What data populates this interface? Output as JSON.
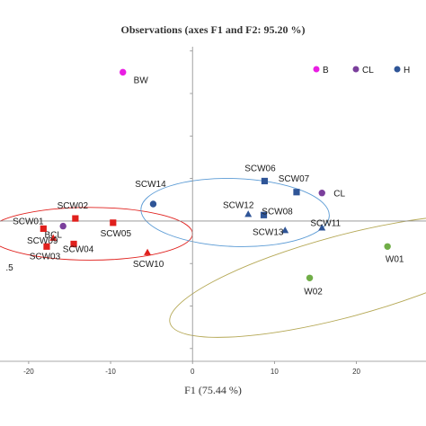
{
  "chart_data": {
    "type": "scatter",
    "title": "Observations (axes F1 and F2: 95.20 %)",
    "xlabel": "F1 (75.44 %)",
    "ylabel": "",
    "xlim": [
      -23.5,
      28.5
    ],
    "ylim": [
      -16.5,
      20.5
    ],
    "x_ticks": [
      -20,
      -10,
      0,
      10,
      20
    ],
    "grid": false,
    "legend_position": "top-right",
    "colors": {
      "B": "#e91ee3",
      "CL": "#7b3f9c",
      "H": "#2f5597",
      "SCW_red": "#e0201d",
      "SCW_blue": "#2f5597",
      "W": "#70ad47",
      "ellipse_red": "#e0201d",
      "ellipse_blue": "#5b9bd5",
      "ellipse_olive": "#b5a855"
    },
    "legend": [
      "B",
      "CL",
      "H"
    ],
    "series": [
      {
        "name": "B",
        "marker": "circle",
        "points": [
          {
            "label": "BW",
            "x": -8.5,
            "y": 17.5
          }
        ]
      },
      {
        "name": "CL",
        "marker": "circle",
        "points": [
          {
            "label": "BCL",
            "x": -15.8,
            "y": -0.6
          },
          {
            "label": "CL",
            "x": 15.8,
            "y": 3.3
          }
        ]
      },
      {
        "name": "H",
        "marker": "circle",
        "points": [
          {
            "label": "SCW14",
            "x": -4.8,
            "y": 2.0
          }
        ]
      },
      {
        "name": "",
        "marker": "square",
        "color": "SCW_red",
        "points": [
          {
            "label": "SCW02",
            "x": -14.3,
            "y": 0.3
          },
          {
            "label": "SCW01",
            "x": -18.2,
            "y": -0.9
          },
          {
            "label": "SCW05",
            "x": -9.7,
            "y": -0.2
          },
          {
            "label": "SCW04",
            "x": -14.5,
            "y": -2.7
          },
          {
            "label": "SCW03",
            "x": -17.8,
            "y": -3.0
          }
        ]
      },
      {
        "name": "",
        "marker": "triangle",
        "color": "SCW_red",
        "points": [
          {
            "label": "SCW09",
            "x": -17.0,
            "y": -2.0
          },
          {
            "label": "SCW10",
            "x": -5.5,
            "y": -3.7
          }
        ]
      },
      {
        "name": "",
        "marker": "square",
        "color": "SCW_blue",
        "points": [
          {
            "label": "SCW06",
            "x": 8.8,
            "y": 4.7
          },
          {
            "label": "SCW07",
            "x": 12.7,
            "y": 3.4
          },
          {
            "label": "SCW08",
            "x": 8.7,
            "y": 0.7
          }
        ]
      },
      {
        "name": "",
        "marker": "triangle",
        "color": "SCW_blue",
        "points": [
          {
            "label": "SCW12",
            "x": 6.8,
            "y": 0.8
          },
          {
            "label": "SCW13",
            "x": 11.3,
            "y": -1.1
          },
          {
            "label": "SCW11",
            "x": 15.8,
            "y": -0.8
          }
        ]
      },
      {
        "name": "",
        "marker": "circle",
        "color": "W",
        "points": [
          {
            "label": "W01",
            "x": 23.8,
            "y": -3.0
          },
          {
            "label": "W02",
            "x": 14.3,
            "y": -6.7
          }
        ]
      }
    ],
    "annotations": [
      {
        "text": ".5",
        "x": -22.8,
        "y": -5.8
      }
    ],
    "ellipses": [
      {
        "color": "ellipse_red",
        "cx": -12.5,
        "cy": -1.5,
        "rx": 12.5,
        "ry": 3.1,
        "angle": 0
      },
      {
        "color": "ellipse_blue",
        "cx": 5.2,
        "cy": 1.0,
        "rx": 11.5,
        "ry": 4.0,
        "angle": -2
      },
      {
        "color": "ellipse_olive",
        "cx": 18.5,
        "cy": -6.5,
        "rx": 22.0,
        "ry": 4.8,
        "angle": 15
      }
    ]
  }
}
